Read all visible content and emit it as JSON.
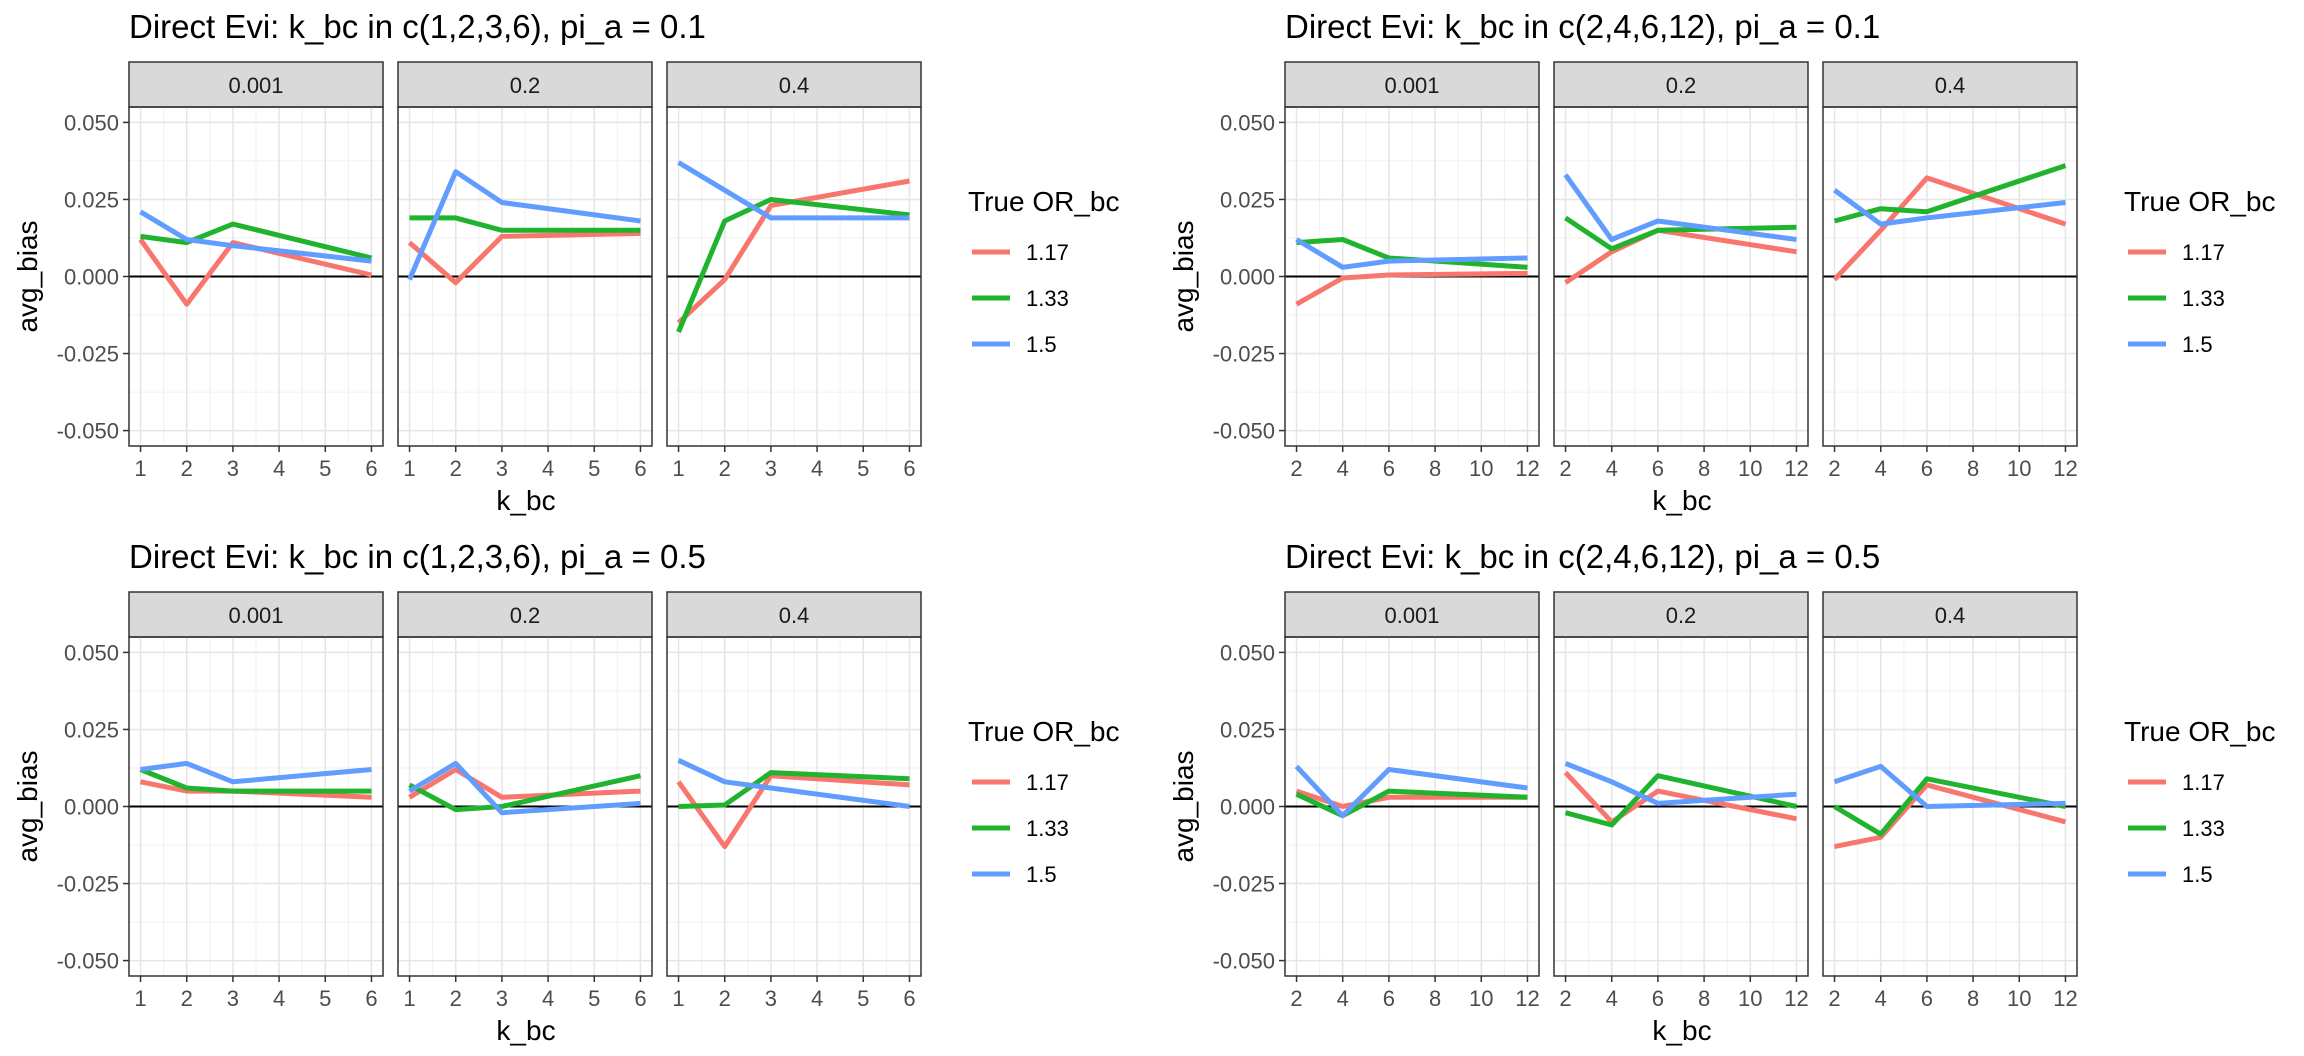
{
  "figure": {
    "colors": {
      "1.17": "#F8766D",
      "1.33": "#1FB32E",
      "1.5": "#619CFF"
    }
  },
  "chart_data": [
    {
      "type": "line",
      "title": "Direct Evi: k_bc in c(1,2,3,6), pi_a = 0.1",
      "xlabel": "k_bc",
      "ylabel": "avg_bias",
      "x_ticks": [
        1,
        2,
        3,
        4,
        5,
        6
      ],
      "x_range": [
        1,
        6
      ],
      "y_ticks": [
        "-0.050",
        "-0.025",
        "0.000",
        "0.025",
        "0.050"
      ],
      "ylim": [
        -0.05,
        0.05
      ],
      "grid": true,
      "legend": {
        "title": "True OR_bc",
        "position": "right",
        "entries": [
          "1.17",
          "1.33",
          "1.5"
        ]
      },
      "facets": [
        {
          "label": "0.001",
          "x": [
            1,
            2,
            3,
            6
          ],
          "series": [
            {
              "name": "1.17",
              "values": [
                0.012,
                -0.009,
                0.011,
                0.0005
              ]
            },
            {
              "name": "1.33",
              "values": [
                0.013,
                0.011,
                0.017,
                0.006
              ]
            },
            {
              "name": "1.5",
              "values": [
                0.021,
                0.012,
                0.01,
                0.005
              ]
            }
          ]
        },
        {
          "label": "0.2",
          "x": [
            1,
            2,
            3,
            6
          ],
          "series": [
            {
              "name": "1.17",
              "values": [
                0.011,
                -0.002,
                0.013,
                0.014
              ]
            },
            {
              "name": "1.33",
              "values": [
                0.019,
                0.019,
                0.015,
                0.015
              ]
            },
            {
              "name": "1.5",
              "values": [
                -0.001,
                0.034,
                0.024,
                0.018
              ]
            }
          ]
        },
        {
          "label": "0.4",
          "x": [
            1,
            2,
            3,
            6
          ],
          "series": [
            {
              "name": "1.17",
              "values": [
                -0.015,
                -0.001,
                0.023,
                0.031
              ]
            },
            {
              "name": "1.33",
              "values": [
                -0.018,
                0.018,
                0.025,
                0.02
              ]
            },
            {
              "name": "1.5",
              "values": [
                0.037,
                0.028,
                0.019,
                0.019
              ]
            }
          ]
        }
      ]
    },
    {
      "type": "line",
      "title": "Direct Evi: k_bc in c(2,4,6,12), pi_a = 0.1",
      "xlabel": "k_bc",
      "ylabel": "avg_bias",
      "x_ticks": [
        2,
        4,
        6,
        8,
        10,
        12
      ],
      "x_range": [
        2,
        12
      ],
      "y_ticks": [
        "-0.050",
        "-0.025",
        "0.000",
        "0.025",
        "0.050"
      ],
      "ylim": [
        -0.05,
        0.05
      ],
      "grid": true,
      "legend": {
        "title": "True OR_bc",
        "position": "right",
        "entries": [
          "1.17",
          "1.33",
          "1.5"
        ]
      },
      "facets": [
        {
          "label": "0.001",
          "x": [
            2,
            4,
            6,
            12
          ],
          "series": [
            {
              "name": "1.17",
              "values": [
                -0.009,
                -0.0005,
                0.0005,
                0.001
              ]
            },
            {
              "name": "1.33",
              "values": [
                0.011,
                0.012,
                0.006,
                0.003
              ]
            },
            {
              "name": "1.5",
              "values": [
                0.012,
                0.003,
                0.005,
                0.006
              ]
            }
          ]
        },
        {
          "label": "0.2",
          "x": [
            2,
            4,
            6,
            12
          ],
          "series": [
            {
              "name": "1.17",
              "values": [
                -0.002,
                0.008,
                0.015,
                0.008
              ]
            },
            {
              "name": "1.33",
              "values": [
                0.019,
                0.009,
                0.015,
                0.016
              ]
            },
            {
              "name": "1.5",
              "values": [
                0.033,
                0.012,
                0.018,
                0.012
              ]
            }
          ]
        },
        {
          "label": "0.4",
          "x": [
            2,
            4,
            6,
            12
          ],
          "series": [
            {
              "name": "1.17",
              "values": [
                -0.001,
                0.015,
                0.032,
                0.017
              ]
            },
            {
              "name": "1.33",
              "values": [
                0.018,
                0.022,
                0.021,
                0.036
              ]
            },
            {
              "name": "1.5",
              "values": [
                0.028,
                0.017,
                0.019,
                0.024
              ]
            }
          ]
        }
      ]
    },
    {
      "type": "line",
      "title": "Direct Evi: k_bc in c(1,2,3,6), pi_a = 0.5",
      "xlabel": "k_bc",
      "ylabel": "avg_bias",
      "x_ticks": [
        1,
        2,
        3,
        4,
        5,
        6
      ],
      "x_range": [
        1,
        6
      ],
      "y_ticks": [
        "-0.050",
        "-0.025",
        "0.000",
        "0.025",
        "0.050"
      ],
      "ylim": [
        -0.05,
        0.05
      ],
      "grid": true,
      "legend": {
        "title": "True OR_bc",
        "position": "right",
        "entries": [
          "1.17",
          "1.33",
          "1.5"
        ]
      },
      "facets": [
        {
          "label": "0.001",
          "x": [
            1,
            2,
            3,
            6
          ],
          "series": [
            {
              "name": "1.17",
              "values": [
                0.008,
                0.005,
                0.005,
                0.003
              ]
            },
            {
              "name": "1.33",
              "values": [
                0.012,
                0.006,
                0.005,
                0.005
              ]
            },
            {
              "name": "1.5",
              "values": [
                0.012,
                0.014,
                0.008,
                0.012
              ]
            }
          ]
        },
        {
          "label": "0.2",
          "x": [
            1,
            2,
            3,
            6
          ],
          "series": [
            {
              "name": "1.17",
              "values": [
                0.003,
                0.012,
                0.003,
                0.005
              ]
            },
            {
              "name": "1.33",
              "values": [
                0.007,
                -0.001,
                0.0,
                0.01
              ]
            },
            {
              "name": "1.5",
              "values": [
                0.005,
                0.014,
                -0.002,
                0.001
              ]
            }
          ]
        },
        {
          "label": "0.4",
          "x": [
            1,
            2,
            3,
            6
          ],
          "series": [
            {
              "name": "1.17",
              "values": [
                0.008,
                -0.013,
                0.01,
                0.007
              ]
            },
            {
              "name": "1.33",
              "values": [
                0.0,
                0.0005,
                0.011,
                0.009
              ]
            },
            {
              "name": "1.5",
              "values": [
                0.015,
                0.008,
                0.006,
                0.0
              ]
            }
          ]
        }
      ]
    },
    {
      "type": "line",
      "title": "Direct Evi:  k_bc in c(2,4,6,12), pi_a = 0.5",
      "xlabel": "k_bc",
      "ylabel": "avg_bias",
      "x_ticks": [
        2,
        4,
        6,
        8,
        10,
        12
      ],
      "x_range": [
        2,
        12
      ],
      "y_ticks": [
        "-0.050",
        "-0.025",
        "0.000",
        "0.025",
        "0.050"
      ],
      "ylim": [
        -0.05,
        0.05
      ],
      "grid": true,
      "legend": {
        "title": "True OR_bc",
        "position": "right",
        "entries": [
          "1.17",
          "1.33",
          "1.5"
        ]
      },
      "facets": [
        {
          "label": "0.001",
          "x": [
            2,
            4,
            6,
            12
          ],
          "series": [
            {
              "name": "1.17",
              "values": [
                0.005,
                0.0,
                0.003,
                0.003
              ]
            },
            {
              "name": "1.33",
              "values": [
                0.004,
                -0.003,
                0.005,
                0.003
              ]
            },
            {
              "name": "1.5",
              "values": [
                0.013,
                -0.003,
                0.012,
                0.006
              ]
            }
          ]
        },
        {
          "label": "0.2",
          "x": [
            2,
            4,
            6,
            12
          ],
          "series": [
            {
              "name": "1.17",
              "values": [
                0.011,
                -0.005,
                0.005,
                -0.004
              ]
            },
            {
              "name": "1.33",
              "values": [
                -0.002,
                -0.006,
                0.01,
                0.0
              ]
            },
            {
              "name": "1.5",
              "values": [
                0.014,
                0.008,
                0.001,
                0.004
              ]
            }
          ]
        },
        {
          "label": "0.4",
          "x": [
            2,
            4,
            6,
            12
          ],
          "series": [
            {
              "name": "1.17",
              "values": [
                -0.013,
                -0.01,
                0.007,
                -0.005
              ]
            },
            {
              "name": "1.33",
              "values": [
                0.0,
                -0.009,
                0.009,
                0.0
              ]
            },
            {
              "name": "1.5",
              "values": [
                0.008,
                0.013,
                0.0,
                0.001
              ]
            }
          ]
        }
      ]
    }
  ]
}
